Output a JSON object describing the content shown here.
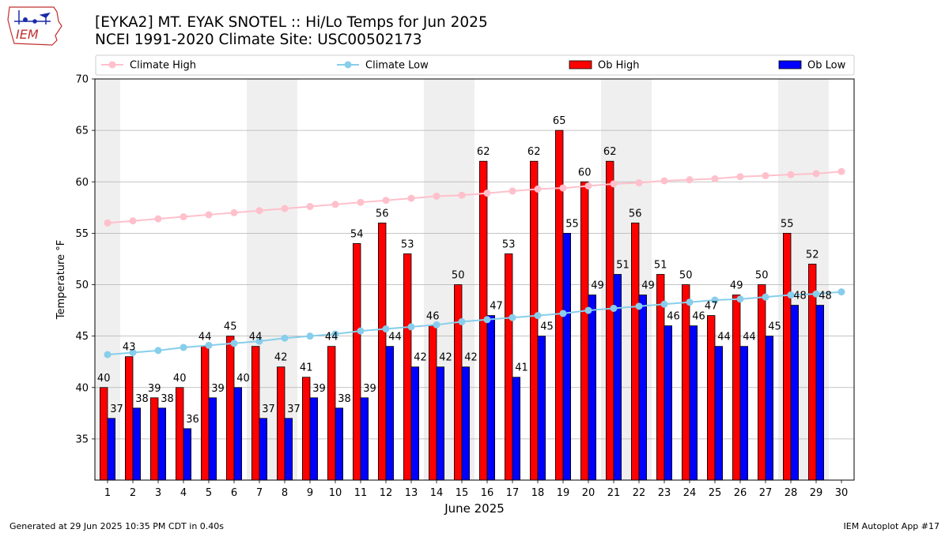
{
  "header": {
    "title_line1": "[EYKA2] MT. EYAK SNOTEL :: Hi/Lo Temps for Jun 2025",
    "title_line2": "NCEI 1991-2020 Climate Site: USC00502173",
    "logo_text": "IEM"
  },
  "footer": {
    "generated": "Generated at 29 Jun 2025 10:35 PM CDT in 0.40s",
    "app": "IEM Autoplot App #17"
  },
  "colors": {
    "ob_high": "#ff0000",
    "ob_low": "#0000ff",
    "climate_high": "#ffc0cb",
    "climate_low": "#87ceeb",
    "weekend_shade": "#efefef"
  },
  "chart_data": {
    "type": "bar",
    "xlabel": "June 2025",
    "ylabel": "Temperature °F",
    "ylim": [
      31,
      70
    ],
    "yticks": [
      35,
      40,
      45,
      50,
      55,
      60,
      65,
      70
    ],
    "grid": true,
    "legend_placement": "top",
    "categories": [
      1,
      2,
      3,
      4,
      5,
      6,
      7,
      8,
      9,
      10,
      11,
      12,
      13,
      14,
      15,
      16,
      17,
      18,
      19,
      20,
      21,
      22,
      23,
      24,
      25,
      26,
      27,
      28,
      29,
      30
    ],
    "shaded_days": [
      1,
      7,
      8,
      14,
      15,
      21,
      22,
      28,
      29
    ],
    "series": [
      {
        "name": "Climate High",
        "kind": "line",
        "values": [
          56.0,
          56.2,
          56.4,
          56.6,
          56.8,
          57.0,
          57.2,
          57.4,
          57.6,
          57.8,
          58.0,
          58.2,
          58.4,
          58.6,
          58.7,
          58.9,
          59.1,
          59.3,
          59.4,
          59.6,
          59.8,
          59.9,
          60.1,
          60.2,
          60.3,
          60.5,
          60.6,
          60.7,
          60.8,
          61.0
        ]
      },
      {
        "name": "Climate Low",
        "kind": "line",
        "values": [
          43.2,
          43.4,
          43.6,
          43.9,
          44.1,
          44.3,
          44.5,
          44.8,
          45.0,
          45.2,
          45.5,
          45.7,
          45.9,
          46.1,
          46.4,
          46.6,
          46.8,
          47.0,
          47.2,
          47.5,
          47.7,
          47.9,
          48.1,
          48.3,
          48.5,
          48.6,
          48.8,
          49.0,
          49.1,
          49.3
        ]
      },
      {
        "name": "Ob High",
        "kind": "bar",
        "values": [
          40,
          43,
          39,
          40,
          44,
          45,
          44,
          42,
          41,
          44,
          54,
          56,
          53,
          46,
          50,
          62,
          53,
          62,
          65,
          60,
          62,
          56,
          51,
          50,
          47,
          49,
          50,
          55,
          52,
          null
        ]
      },
      {
        "name": "Ob Low",
        "kind": "bar",
        "values": [
          37,
          38,
          38,
          36,
          39,
          40,
          37,
          37,
          39,
          38,
          39,
          44,
          42,
          42,
          42,
          47,
          41,
          45,
          55,
          49,
          51,
          49,
          46,
          46,
          44,
          44,
          45,
          48,
          48,
          null
        ]
      }
    ]
  }
}
